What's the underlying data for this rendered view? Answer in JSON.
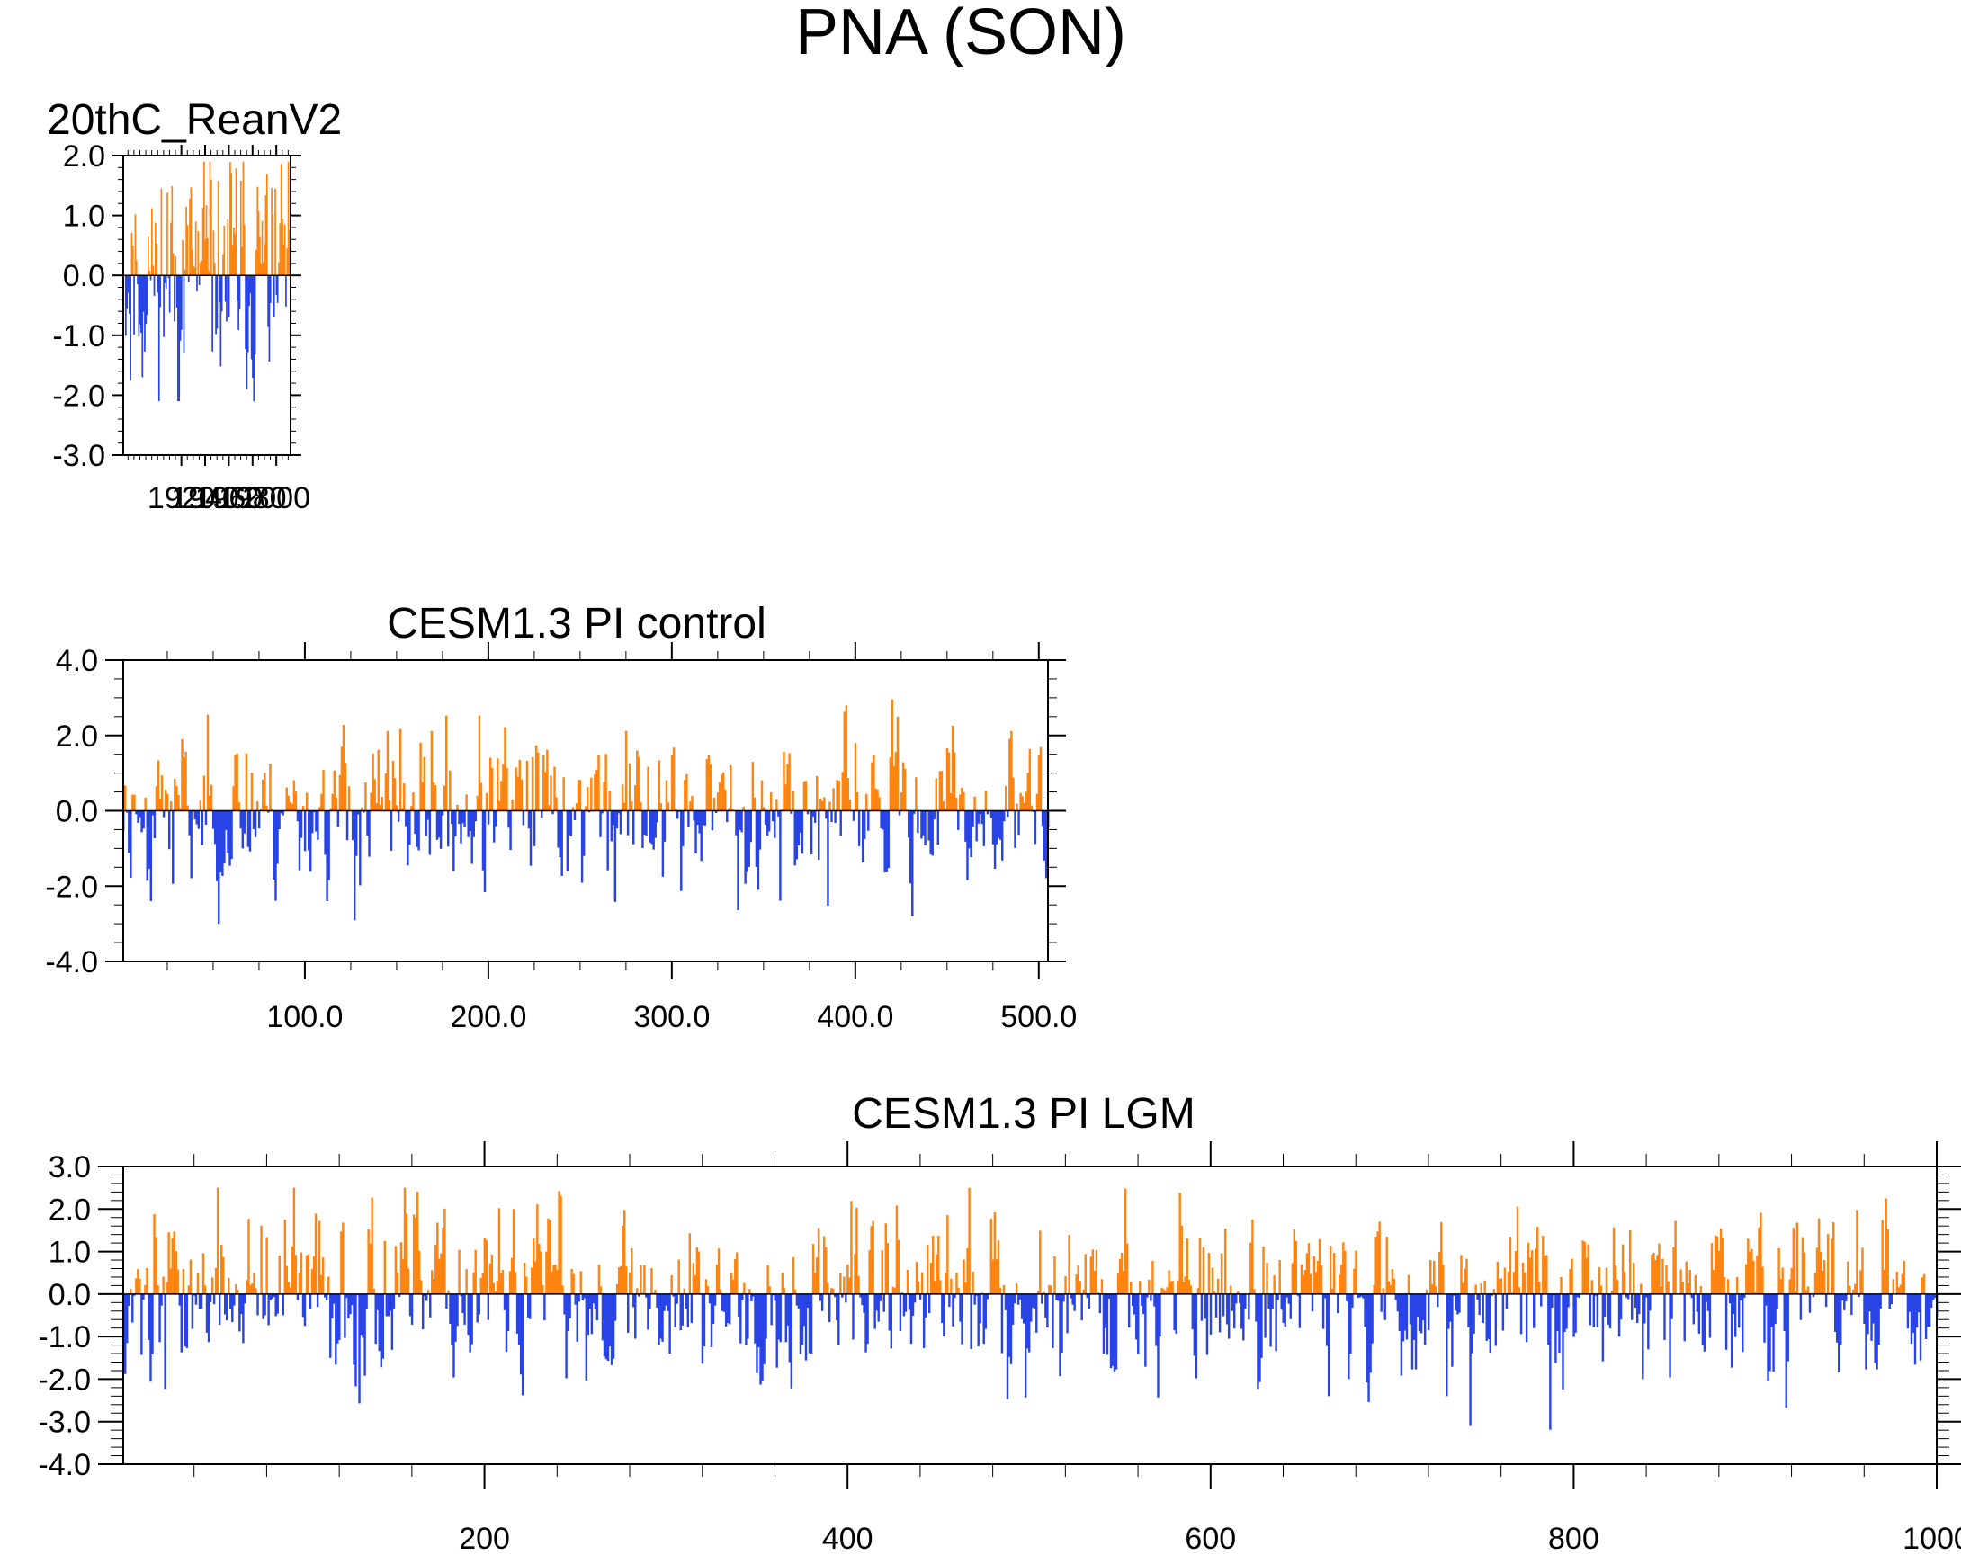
{
  "page_title": "PNA (SON)",
  "colors": {
    "positive": "#ff8410",
    "negative": "#2844e6",
    "axis": "#000000"
  },
  "chart_data": [
    {
      "type": "bar",
      "title": "20thC_ReanV2",
      "xlim": [
        1871,
        2012
      ],
      "ylim": [
        -3.0,
        2.0
      ],
      "yticks": [
        -3.0,
        -2.0,
        -1.0,
        0.0,
        1.0,
        2.0
      ],
      "ytick_labels": [
        "-3.0",
        "-2.0",
        "-1.0",
        "0.0",
        "1.0",
        "2.0"
      ],
      "xticks": [
        1920,
        1940,
        1960,
        1980,
        2000
      ],
      "xtick_labels": [
        "1920",
        "1940",
        "1960",
        "1980",
        "2000"
      ],
      "series": {
        "start": 1871,
        "count": 142,
        "seed": 11,
        "amplitude": 0.95,
        "max_pos": 1.9,
        "min_neg": -2.1
      }
    },
    {
      "type": "bar",
      "title": "CESM1.3 PI control",
      "xlim": [
        1,
        505
      ],
      "ylim": [
        -4.0,
        4.0
      ],
      "yticks": [
        -4.0,
        -2.0,
        0.0,
        2.0,
        4.0
      ],
      "ytick_labels": [
        "-4.0",
        "-2.0",
        "0.0",
        "2.0",
        "4.0"
      ],
      "xticks": [
        100,
        200,
        300,
        400,
        500
      ],
      "xtick_labels": [
        "100.0",
        "200.0",
        "300.0",
        "400.0",
        "500.0"
      ],
      "series": {
        "start": 1,
        "count": 505,
        "seed": 23,
        "amplitude": 1.0,
        "max_pos": 3.3,
        "min_neg": -3.0
      }
    },
    {
      "type": "bar",
      "title": "CESM1.3 PI LGM",
      "xlim": [
        1,
        1000
      ],
      "ylim": [
        -4.0,
        3.0
      ],
      "yticks": [
        -4.0,
        -3.0,
        -2.0,
        -1.0,
        0.0,
        1.0,
        2.0,
        3.0
      ],
      "ytick_labels": [
        "-4.0",
        "-3.0",
        "-2.0",
        "-1.0",
        "0.0",
        "1.0",
        "2.0",
        "3.0"
      ],
      "xticks": [
        200,
        400,
        600,
        800,
        1000
      ],
      "xtick_labels": [
        "200",
        "400",
        "600",
        "800",
        "1000"
      ],
      "series": {
        "start": 1,
        "count": 1000,
        "seed": 37,
        "amplitude": 0.95,
        "max_pos": 2.5,
        "min_neg": -3.2
      }
    }
  ]
}
